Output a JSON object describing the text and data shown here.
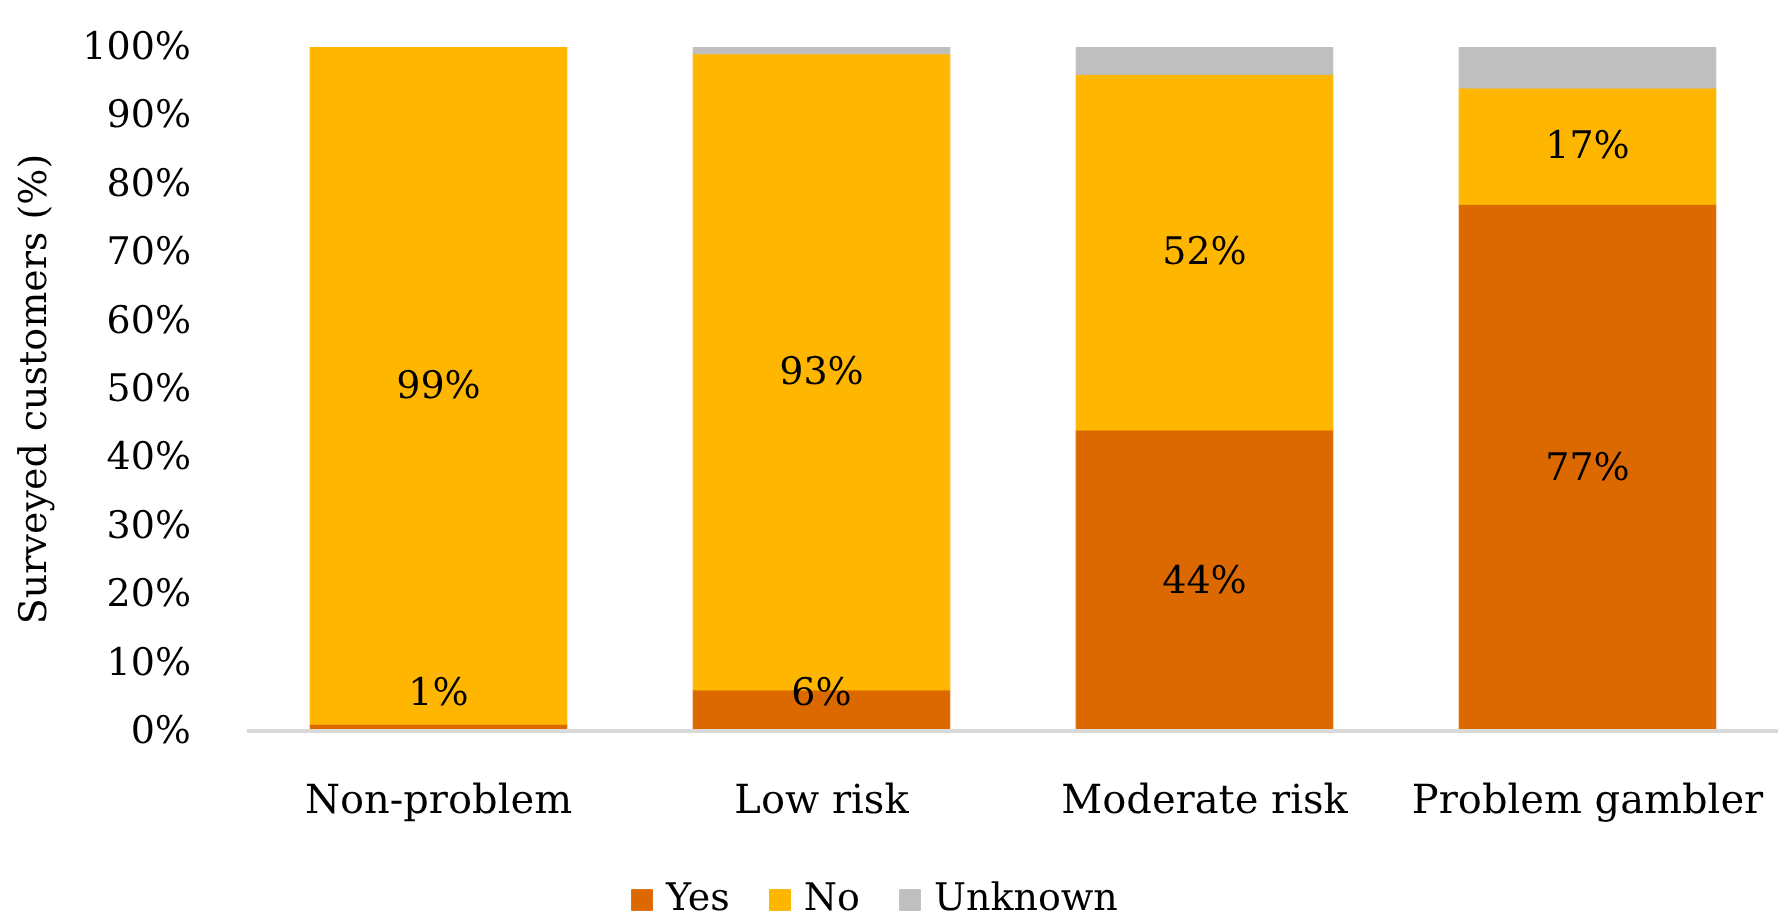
{
  "chart_data": {
    "type": "bar",
    "stacked": true,
    "ylabel": "Surveyed customers (%)",
    "categories": [
      "Non-problem",
      "Low risk",
      "Moderate risk",
      "Problem gambler"
    ],
    "series": [
      {
        "name": "Yes",
        "color": "#dc6900",
        "values": [
          1,
          6,
          44,
          77
        ],
        "value_labels": [
          "1%",
          "6%",
          "44%",
          "77%"
        ]
      },
      {
        "name": "No",
        "color": "#ffb600",
        "values": [
          99,
          93,
          52,
          17
        ],
        "value_labels": [
          "99%",
          "93%",
          "52%",
          "17%"
        ]
      },
      {
        "name": "Unknown",
        "color": "#bfbfbf",
        "values": [
          null,
          1,
          4,
          6
        ]
      }
    ],
    "ylim": [
      0,
      100
    ],
    "yticks": [
      {
        "value": 0,
        "label": "0%"
      },
      {
        "value": 10,
        "label": "10%"
      },
      {
        "value": 20,
        "label": "20%"
      },
      {
        "value": 30,
        "label": "30%"
      },
      {
        "value": 40,
        "label": "40%"
      },
      {
        "value": 50,
        "label": "50%"
      },
      {
        "value": 60,
        "label": "60%"
      },
      {
        "value": 70,
        "label": "70%"
      },
      {
        "value": 80,
        "label": "80%"
      },
      {
        "value": 90,
        "label": "90%"
      },
      {
        "value": 100,
        "label": "100%"
      }
    ],
    "grid": false,
    "legend": "bottom"
  }
}
